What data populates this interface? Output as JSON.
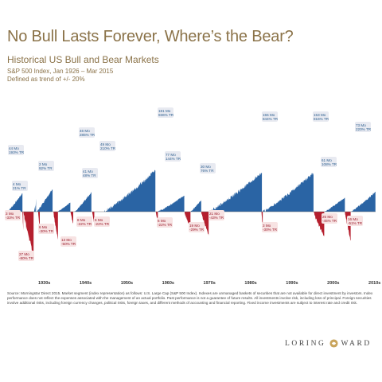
{
  "header": {
    "title": "No Bull Lasts Forever, Where’s the Bear?",
    "subtitle": "Historical US Bull and Bear Markets",
    "desc_line1": "S&P 500 Index, Jan 1926 – Mar 2015",
    "desc_line2": "Defined as trend of +/- 20%"
  },
  "colors": {
    "bull": "#2a64a4",
    "bear": "#b51f2e",
    "title": "#8b7349",
    "bull_label_bg": "#e8eaf1",
    "bear_label_bg": "#f7e3e3"
  },
  "chart_data": {
    "type": "area",
    "title": "Historical US Bull and Bear Markets",
    "x_range": [
      "1926",
      "2015"
    ],
    "x_ticks": [
      "1930s",
      "1940s",
      "1950s",
      "1960s",
      "1970s",
      "1980s",
      "1990s",
      "2000s",
      "2010s"
    ],
    "series": [
      {
        "name": "Bull",
        "markets": [
          {
            "start": 1926.0,
            "end": 1929.7,
            "months": 44,
            "total_return_pct": 193,
            "label_lines": [
              "44 Mo",
              "193% TR"
            ]
          },
          {
            "start": 1932.5,
            "end": 1932.8,
            "months": 4,
            "total_return_pct": 21,
            "label_lines": [
              "4 Mo",
              "21% TR"
            ]
          },
          {
            "start": 1932.8,
            "end": 1933.0,
            "months": 2,
            "total_return_pct": 92,
            "label_lines": [
              "2 Mo",
              "92% TR"
            ]
          },
          {
            "start": 1933.0,
            "end": 1937.0,
            "months": 46,
            "total_return_pct": 285,
            "label_lines": [
              "46 Mo",
              "285% TR"
            ]
          },
          {
            "start": 1938.2,
            "end": 1941.3,
            "months": 41,
            "total_return_pct": 48,
            "label_lines": [
              "41 Mo",
              "48% TR"
            ]
          },
          {
            "start": 1942.3,
            "end": 1946.4,
            "months": 49,
            "total_return_pct": 210,
            "label_lines": [
              "49 Mo",
              "210% TR"
            ]
          },
          {
            "start": 1949.5,
            "end": 1961.9,
            "months": 181,
            "total_return_pct": 936,
            "label_lines": [
              "181 Mo",
              "936% TR"
            ]
          },
          {
            "start": 1962.5,
            "end": 1968.9,
            "months": 77,
            "total_return_pct": 144,
            "label_lines": [
              "77 Mo",
              "144% TR"
            ]
          },
          {
            "start": 1970.4,
            "end": 1973.0,
            "months": 30,
            "total_return_pct": 76,
            "label_lines": [
              "30 Mo",
              "76% TR"
            ]
          },
          {
            "start": 1974.8,
            "end": 1987.7,
            "months": 155,
            "total_return_pct": 844,
            "label_lines": [
              "155 Mo",
              "844% TR"
            ]
          },
          {
            "start": 1987.9,
            "end": 2000.2,
            "months": 153,
            "total_return_pct": 816,
            "label_lines": [
              "153 Mo",
              "816% TR"
            ]
          },
          {
            "start": 2002.8,
            "end": 2007.8,
            "months": 61,
            "total_return_pct": 108,
            "label_lines": [
              "61 Mo",
              "108% TR"
            ]
          },
          {
            "start": 2009.2,
            "end": 2015.2,
            "months": 73,
            "total_return_pct": 220,
            "label_lines": [
              "73 Mo",
              "220% TR"
            ]
          }
        ]
      },
      {
        "name": "Bear",
        "markets": [
          {
            "start": 1929.7,
            "end": 1929.9,
            "months": 3,
            "total_return_pct": -33,
            "label_lines": [
              "3 Mo",
              "-33% TR"
            ]
          },
          {
            "start": 1929.9,
            "end": 1932.4,
            "months": 27,
            "total_return_pct": -80,
            "label_lines": [
              "27 Mo",
              "-80% TR"
            ]
          },
          {
            "start": 1933.5,
            "end": 1933.9,
            "months": 6,
            "total_return_pct": -30,
            "label_lines": [
              "6 Mo",
              "-30% TR"
            ]
          },
          {
            "start": 1937.2,
            "end": 1938.3,
            "months": 13,
            "total_return_pct": -50,
            "label_lines": [
              "13 Mo",
              "-50% TR"
            ]
          },
          {
            "start": 1941.3,
            "end": 1942.0,
            "months": 8,
            "total_return_pct": -22,
            "label_lines": [
              "8 Mo",
              "-22% TR"
            ]
          },
          {
            "start": 1946.6,
            "end": 1947.1,
            "months": 6,
            "total_return_pct": -22,
            "label_lines": [
              "6 Mo",
              "-22% TR"
            ]
          },
          {
            "start": 1962.0,
            "end": 1962.5,
            "months": 6,
            "total_return_pct": -22,
            "label_lines": [
              "6 Mo",
              "-22% TR"
            ]
          },
          {
            "start": 1968.9,
            "end": 1970.4,
            "months": 19,
            "total_return_pct": -29,
            "label_lines": [
              "19 Mo",
              "-29% TR"
            ]
          },
          {
            "start": 1973.0,
            "end": 1974.8,
            "months": 21,
            "total_return_pct": -43,
            "label_lines": [
              "21 Mo",
              "-43% TR"
            ]
          },
          {
            "start": 1987.6,
            "end": 1987.9,
            "months": 3,
            "total_return_pct": -30,
            "label_lines": [
              "3 Mo",
              "-30% TR"
            ]
          },
          {
            "start": 2000.2,
            "end": 2002.8,
            "months": 25,
            "total_return_pct": -45,
            "label_lines": [
              "25 Mo",
              "-45% TR"
            ]
          },
          {
            "start": 2007.8,
            "end": 2009.2,
            "months": 16,
            "total_return_pct": -51,
            "label_lines": [
              "16 Mo",
              "-51% TR"
            ]
          }
        ]
      }
    ]
  },
  "footer": {
    "source_text": "Source: Morningstar Direct 2015. Market segment (index representation) as follows: U.S. Large Cap (S&P 500 Index). Indexes are unmanaged baskets of securities that are not available for direct investment by investors. Index performance does not reflect the expenses associated with the management of an actual portfolio. Past performance is not a guarantee of future results. All investments involve risk, including loss of principal. Foreign securities involve additional risks, including foreign currency changes, political risks, foreign taxes, and different methods of accounting and financial reporting. Fixed income investments are subject to interest rate and credit risk.",
    "logo_left": "LORING",
    "logo_right": "WARD"
  }
}
